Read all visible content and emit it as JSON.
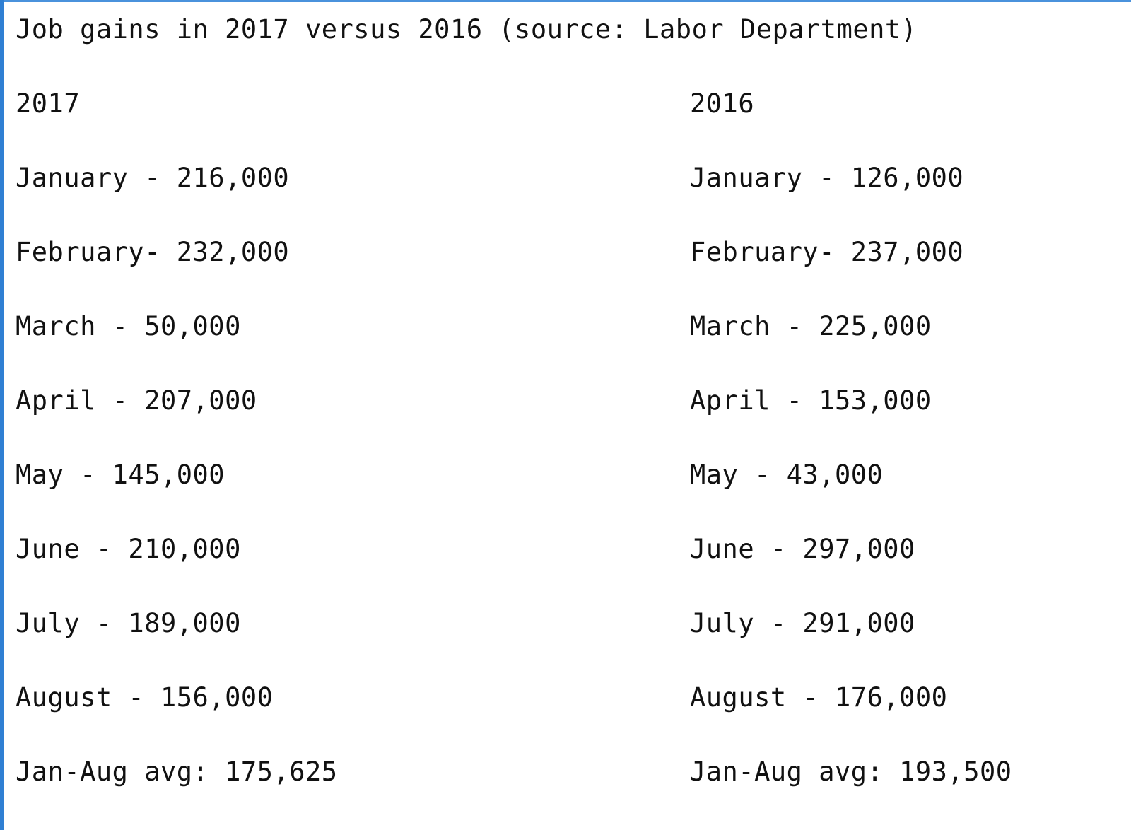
{
  "document": {
    "title": "Job gains in 2017 versus 2016 (source: Labor Department)",
    "left_column": {
      "header": "2017",
      "lines": [
        "January - 216,000",
        "February- 232,000",
        "March - 50,000",
        "April - 207,000",
        "May - 145,000",
        "June - 210,000",
        "July - 189,000",
        "August - 156,000",
        "Jan-Aug avg: 175,625"
      ]
    },
    "right_column": {
      "header": "2016",
      "lines": [
        "January - 126,000",
        "February- 237,000",
        "March - 225,000",
        "April - 153,000",
        "May - 43,000",
        "June - 297,000",
        "July - 291,000",
        "August - 176,000",
        "Jan-Aug avg: 193,500"
      ]
    }
  },
  "colors": {
    "border_accent": "#2f7fd3",
    "text": "#111111",
    "background": "#ffffff"
  }
}
